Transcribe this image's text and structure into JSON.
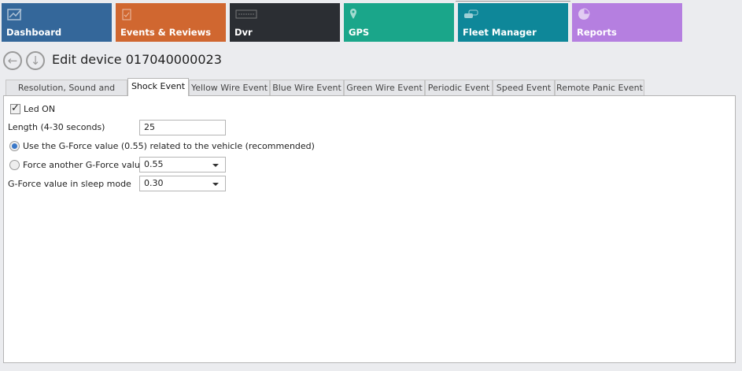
{
  "tiles": [
    {
      "label": "Dashboard",
      "icon": "chart-line-icon",
      "color": "#34679a"
    },
    {
      "label": "Events & Reviews",
      "icon": "clipboard-check-icon",
      "color": "#d06730"
    },
    {
      "label": "Dvr",
      "icon": "dvr-icon",
      "color": "#2b2e33"
    },
    {
      "label": "GPS",
      "icon": "map-pin-icon",
      "color": "#1aa68a"
    },
    {
      "label": "Fleet Manager",
      "icon": "cars-icon",
      "color": "#0e8799"
    },
    {
      "label": "Reports",
      "icon": "pie-chart-icon",
      "color": "#b57fe0"
    }
  ],
  "header": {
    "title": "Edit device 017040000023"
  },
  "tabs": [
    "Resolution, Sound and Sleep",
    "Shock Event",
    "Yellow Wire Event",
    "Blue Wire Event",
    "Green Wire Event",
    "Periodic Event",
    "Speed Event",
    "Remote Panic Event"
  ],
  "selected_tab": "Shock Event",
  "form": {
    "led_label": "Led ON",
    "led_checked": true,
    "length_label": "Length (4-30 seconds)",
    "length_value": "25",
    "radio_vehicle_label": "Use the G-Force value (0.55) related to the vehicle (recommended)",
    "radio_force_label": "Force another G-Force value",
    "force_value": "0.55",
    "sleep_label": "G-Force value in sleep mode",
    "sleep_value": "0.30"
  }
}
